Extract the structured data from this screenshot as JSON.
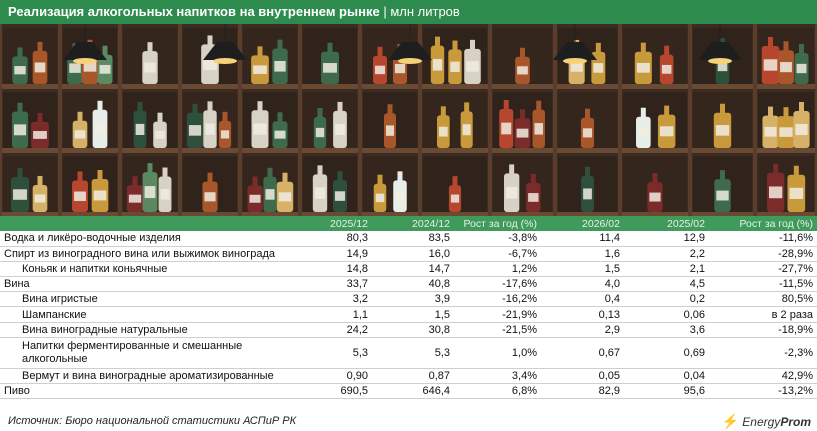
{
  "header": {
    "title": "Реализация алкогольных напитков на внутреннем рынке",
    "separator": "|",
    "unit": "млн литров"
  },
  "chart_data": {
    "type": "table",
    "columns": [
      "2025/12",
      "2024/12",
      "Рост за год (%)",
      "2026/02",
      "2025/02",
      "Рост за год (%)"
    ],
    "rows": [
      {
        "label": "Водка и ликёро-водочные изделия",
        "indent": false,
        "values": [
          "80,3",
          "83,5",
          "-3,8%",
          "11,4",
          "12,9",
          "-11,6%"
        ]
      },
      {
        "label": "Спирт из виноградного вина или выжимок винограда",
        "indent": false,
        "values": [
          "14,9",
          "16,0",
          "-6,7%",
          "1,6",
          "2,2",
          "-28,9%"
        ]
      },
      {
        "label": "Коньяк и напитки коньячные",
        "indent": true,
        "values": [
          "14,8",
          "14,7",
          "1,2%",
          "1,5",
          "2,1",
          "-27,7%"
        ]
      },
      {
        "label": "Вина",
        "indent": false,
        "values": [
          "33,7",
          "40,8",
          "-17,6%",
          "4,0",
          "4,5",
          "-11,5%"
        ]
      },
      {
        "label": "Вина игристые",
        "indent": true,
        "values": [
          "3,2",
          "3,9",
          "-16,2%",
          "0,4",
          "0,2",
          "80,5%"
        ]
      },
      {
        "label": "Шампанские",
        "indent": true,
        "values": [
          "1,1",
          "1,5",
          "-21,9%",
          "0,13",
          "0,06",
          "в 2 раза"
        ]
      },
      {
        "label": "Вина виноградные натуральные",
        "indent": true,
        "values": [
          "24,2",
          "30,8",
          "-21,5%",
          "2,9",
          "3,6",
          "-18,9%"
        ]
      },
      {
        "label": "Напитки ферментированные и смешанные алкогольные",
        "indent": true,
        "tall": true,
        "values": [
          "5,3",
          "5,3",
          "1,0%",
          "0,67",
          "0,69",
          "-2,3%"
        ]
      },
      {
        "label": "Вермут и вина виноградные ароматизированные",
        "indent": true,
        "values": [
          "0,90",
          "0,87",
          "3,4%",
          "0,05",
          "0,04",
          "42,9%"
        ]
      },
      {
        "label": "Пиво",
        "indent": false,
        "values": [
          "690,5",
          "646,4",
          "6,8%",
          "82,9",
          "95,6",
          "-13,2%"
        ]
      }
    ]
  },
  "footer": {
    "source": "Источник: Бюро национальной статистики АСПиР РК",
    "logo_prefix": "Energy",
    "logo_suffix": "Prom"
  },
  "colors": {
    "accent_green": "#2e8b4e",
    "header_green": "#3f9a5c",
    "shelf_dark": "#3a2a20",
    "shelf_wood": "#5a3e2b"
  }
}
